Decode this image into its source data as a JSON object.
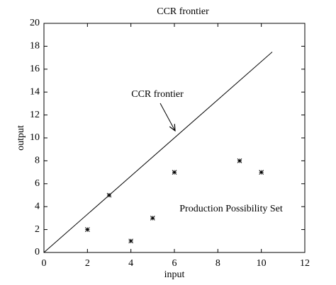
{
  "chart_data": {
    "type": "scatter",
    "title": "CCR frontier",
    "x_label": "input",
    "y_label": "output",
    "x": [
      2,
      3,
      4,
      5,
      6,
      9,
      10
    ],
    "values": [
      2,
      5,
      1,
      3,
      7,
      8,
      7
    ],
    "color": "#000000",
    "frontier": {
      "x": [
        0,
        10.5
      ],
      "values": [
        0,
        17.5
      ],
      "color": "#000000"
    },
    "annotations": [
      "CCR frontier",
      "Production Possibility Set"
    ],
    "xlim": [
      0,
      12
    ],
    "xticks": [
      0,
      2,
      4,
      6,
      8,
      10,
      12
    ],
    "ylim": [
      0,
      20
    ],
    "yticks": [
      0,
      2,
      4,
      6,
      8,
      10,
      12,
      14,
      16,
      18,
      20
    ],
    "grid": false
  }
}
